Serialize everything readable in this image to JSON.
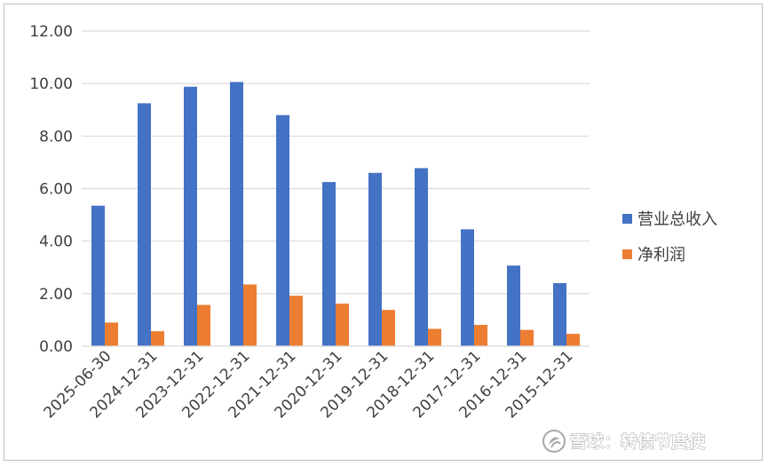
{
  "chart_data": {
    "type": "bar",
    "title": "",
    "xlabel": "",
    "ylabel": "",
    "ylim": [
      0,
      12
    ],
    "ytick_values": [
      0,
      2,
      4,
      6,
      8,
      10,
      12
    ],
    "ytick_labels": [
      "0.00",
      "2.00",
      "4.00",
      "6.00",
      "8.00",
      "10.00",
      "12.00"
    ],
    "grid": true,
    "legend_position": "right",
    "categories": [
      "2025-06-30",
      "2024-12-31",
      "2023-12-31",
      "2022-12-31",
      "2021-12-31",
      "2020-12-31",
      "2019-12-31",
      "2018-12-31",
      "2017-12-31",
      "2016-12-31",
      "2015-12-31"
    ],
    "series": [
      {
        "name": "营业总收入",
        "color": "#4472c4",
        "values": [
          5.35,
          9.25,
          9.88,
          10.06,
          8.8,
          6.25,
          6.6,
          6.78,
          4.45,
          3.07,
          2.4
        ]
      },
      {
        "name": "净利润",
        "color": "#ed7d31",
        "values": [
          0.9,
          0.57,
          1.57,
          2.35,
          1.92,
          1.62,
          1.38,
          0.66,
          0.81,
          0.62,
          0.47
        ]
      }
    ]
  },
  "watermark": {
    "text": "雪球：转债节度使",
    "icon": "snowball-logo-icon"
  }
}
